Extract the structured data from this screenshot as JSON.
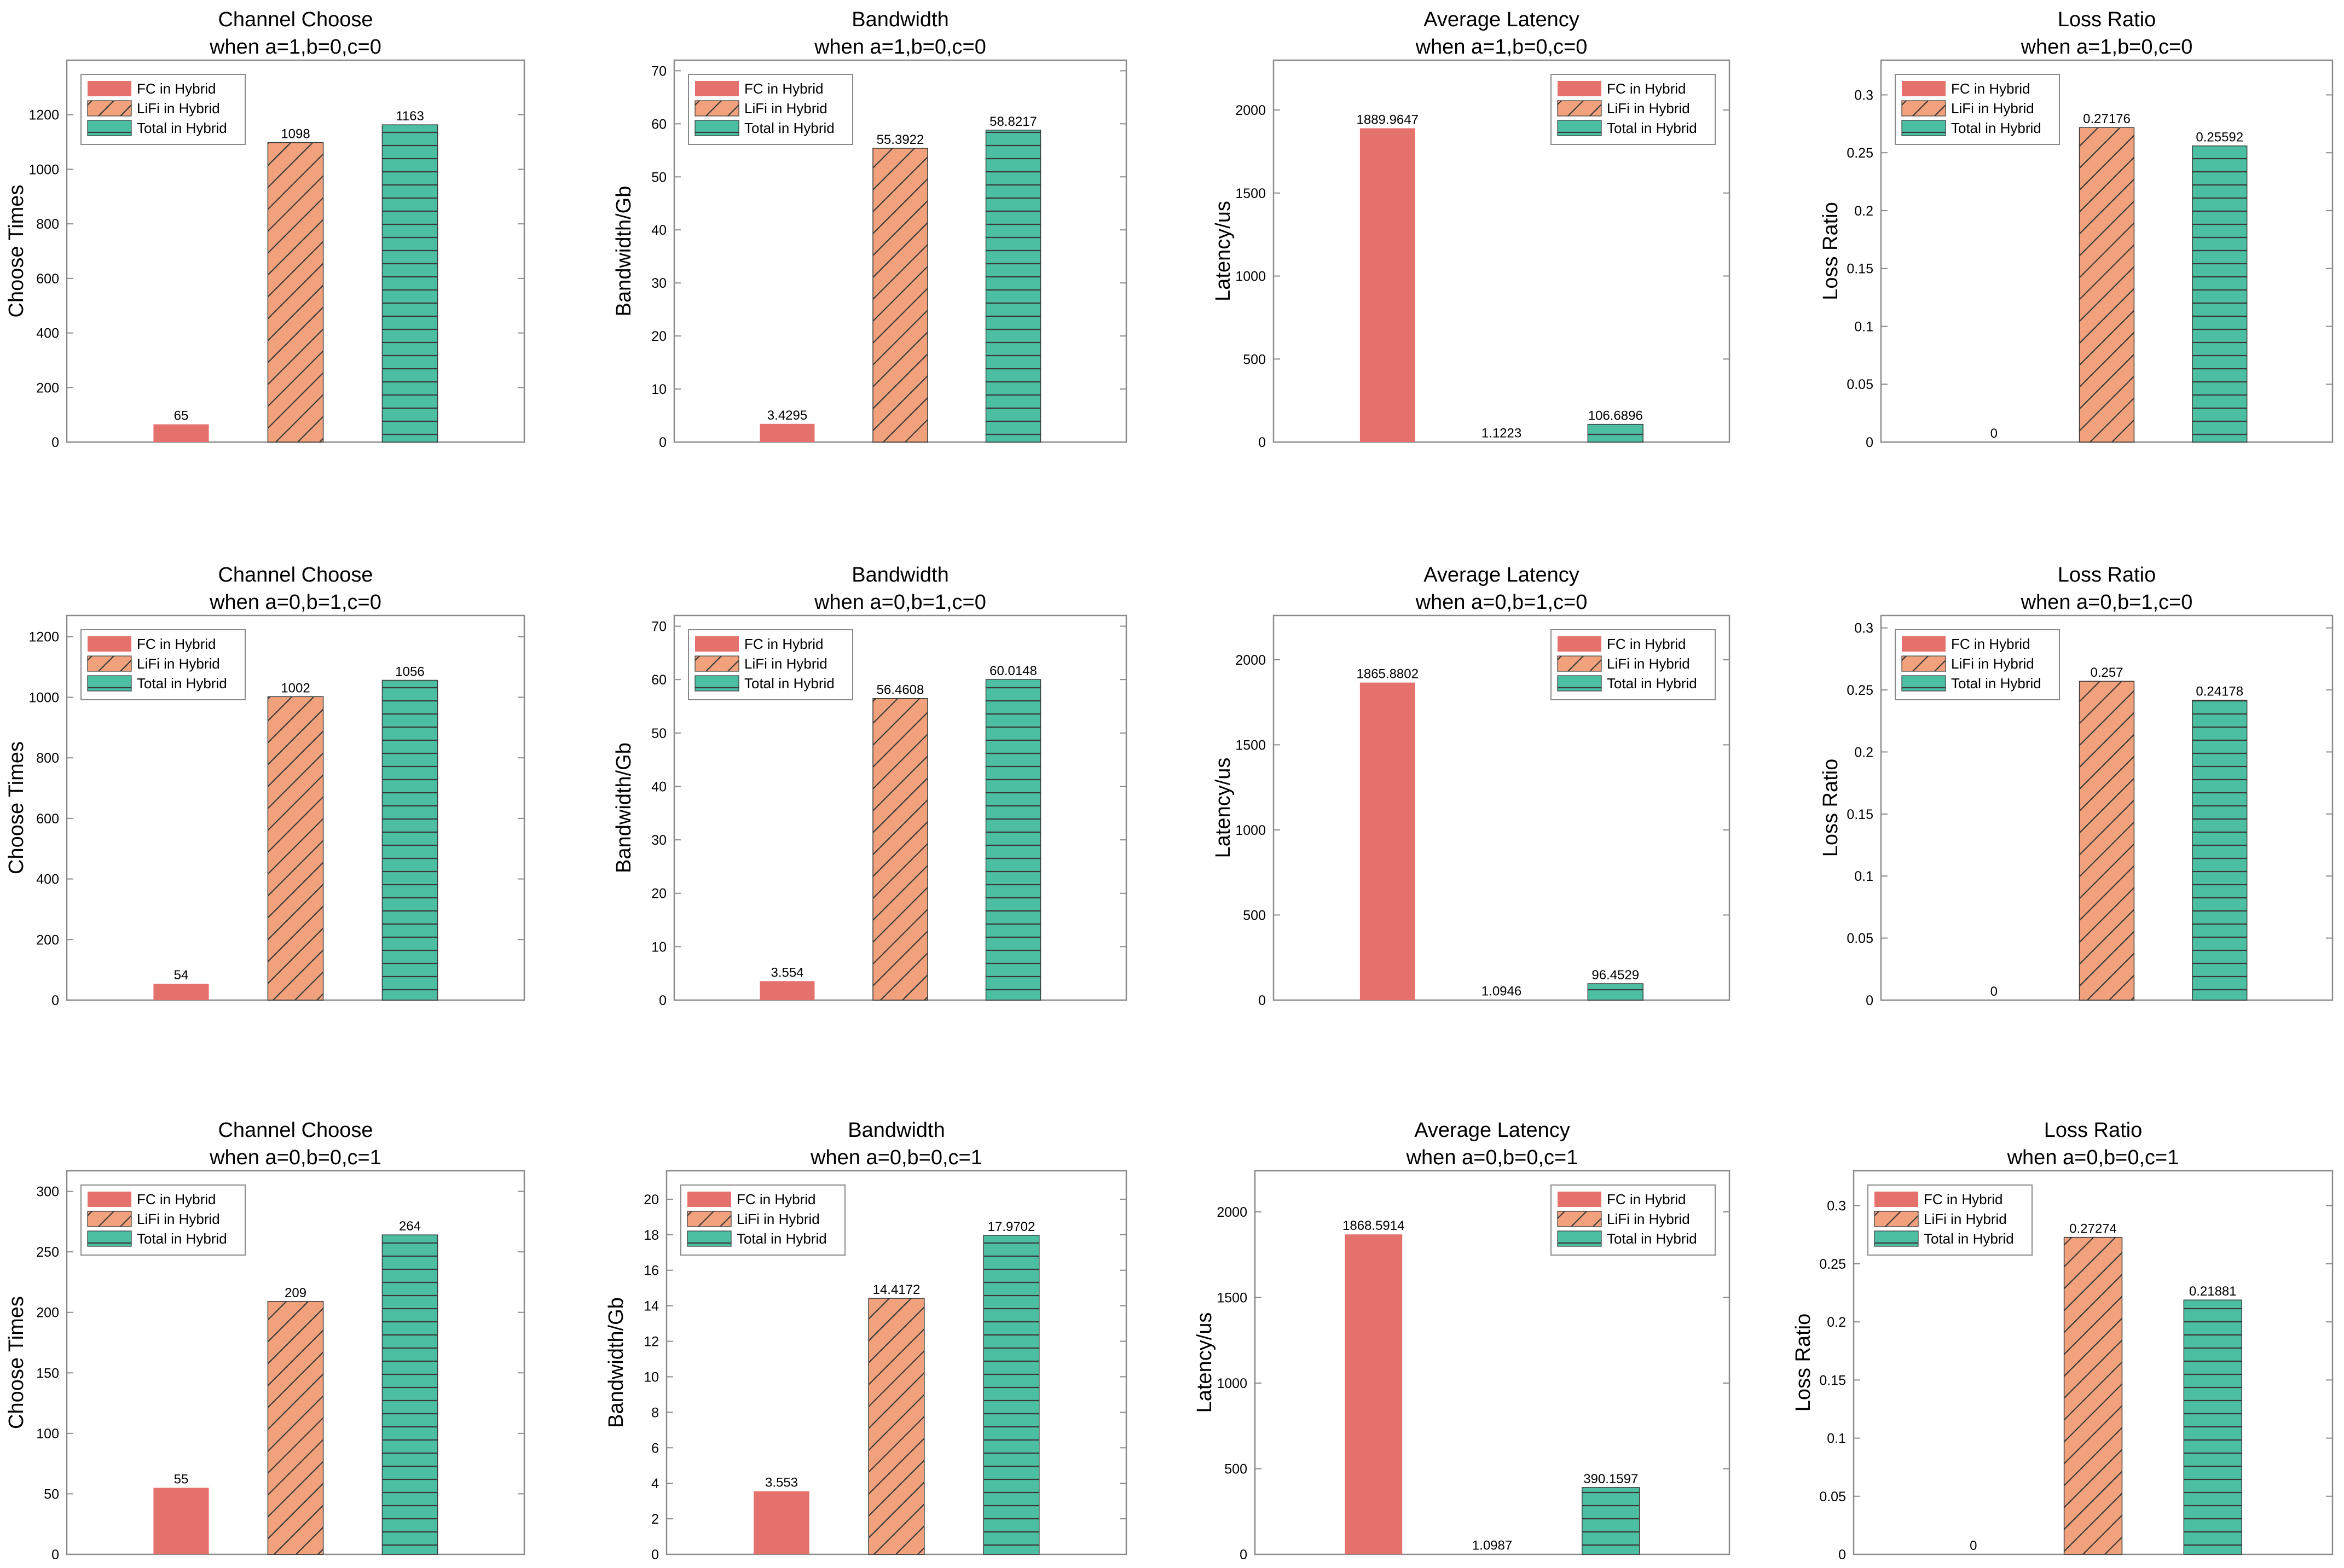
{
  "legend": [
    "FC in Hybrid",
    "LiFi in Hybrid",
    "Total in Hybrid"
  ],
  "colors": {
    "fc": "#e4716b",
    "lifi": "#f1a27c",
    "total": "#4cbfa3",
    "hatch": "#3a3a3a",
    "axis": "#8a8a8a"
  },
  "chart_data": [
    {
      "type": "bar",
      "title": "Channel Choose",
      "subtitle": "when a=1,b=0,c=0",
      "ylabel": "Choose Times",
      "ylim": [
        0,
        1400
      ],
      "yticks": [
        0,
        200,
        400,
        600,
        800,
        1000,
        1200
      ],
      "legend_loc": "top-left",
      "categories": [
        "FC in Hybrid",
        "LiFi in Hybrid",
        "Total in Hybrid"
      ],
      "values": [
        65,
        1098,
        1163
      ],
      "labels": [
        "65",
        "1098",
        "1163"
      ]
    },
    {
      "type": "bar",
      "title": "Bandwidth",
      "subtitle": "when a=1,b=0,c=0",
      "ylabel": "Bandwidth/Gb",
      "ylim": [
        0,
        72
      ],
      "yticks": [
        0,
        10,
        20,
        30,
        40,
        50,
        60,
        70
      ],
      "legend_loc": "top-left",
      "categories": [
        "FC in Hybrid",
        "LiFi in Hybrid",
        "Total in Hybrid"
      ],
      "values": [
        3.4295,
        55.3922,
        58.8217
      ],
      "labels": [
        "3.4295",
        "55.3922",
        "58.8217"
      ]
    },
    {
      "type": "bar",
      "title": "Average Latency",
      "subtitle": "when a=1,b=0,c=0",
      "ylabel": "Latency/us",
      "ylim": [
        0,
        2300
      ],
      "yticks": [
        0,
        500,
        1000,
        1500,
        2000
      ],
      "legend_loc": "top-right",
      "categories": [
        "FC in Hybrid",
        "LiFi in Hybrid",
        "Total in Hybrid"
      ],
      "values": [
        1889.9647,
        1.1223,
        106.6896
      ],
      "labels": [
        "1889.9647",
        "1.1223",
        "106.6896"
      ]
    },
    {
      "type": "bar",
      "title": "Loss Ratio",
      "subtitle": "when a=1,b=0,c=0",
      "ylabel": "Loss Ratio",
      "ylim": [
        0,
        0.33
      ],
      "yticks": [
        0,
        0.05,
        0.1,
        0.15,
        0.2,
        0.25,
        0.3
      ],
      "legend_loc": "top-left",
      "categories": [
        "FC in Hybrid",
        "LiFi in Hybrid",
        "Total in Hybrid"
      ],
      "values": [
        0,
        0.27176,
        0.25592
      ],
      "labels": [
        "0",
        "0.27176",
        "0.25592"
      ]
    },
    {
      "type": "bar",
      "title": "Channel Choose",
      "subtitle": "when a=0,b=1,c=0",
      "ylabel": "Choose Times",
      "ylim": [
        0,
        1270
      ],
      "yticks": [
        0,
        200,
        400,
        600,
        800,
        1000,
        1200
      ],
      "legend_loc": "top-left",
      "categories": [
        "FC in Hybrid",
        "LiFi in Hybrid",
        "Total in Hybrid"
      ],
      "values": [
        54,
        1002,
        1056
      ],
      "labels": [
        "54",
        "1002",
        "1056"
      ]
    },
    {
      "type": "bar",
      "title": "Bandwidth",
      "subtitle": "when a=0,b=1,c=0",
      "ylabel": "Bandwidth/Gb",
      "ylim": [
        0,
        72
      ],
      "yticks": [
        0,
        10,
        20,
        30,
        40,
        50,
        60,
        70
      ],
      "legend_loc": "top-left",
      "categories": [
        "FC in Hybrid",
        "LiFi in Hybrid",
        "Total in Hybrid"
      ],
      "values": [
        3.554,
        56.4608,
        60.0148
      ],
      "labels": [
        "3.554",
        "56.4608",
        "60.0148"
      ]
    },
    {
      "type": "bar",
      "title": "Average Latency",
      "subtitle": "when a=0,b=1,c=0",
      "ylabel": "Latency/us",
      "ylim": [
        0,
        2260
      ],
      "yticks": [
        0,
        500,
        1000,
        1500,
        2000
      ],
      "legend_loc": "top-right",
      "categories": [
        "FC in Hybrid",
        "LiFi in Hybrid",
        "Total in Hybrid"
      ],
      "values": [
        1865.8802,
        1.0946,
        96.4529
      ],
      "labels": [
        "1865.8802",
        "1.0946",
        "96.4529"
      ]
    },
    {
      "type": "bar",
      "title": "Loss Ratio",
      "subtitle": "when a=0,b=1,c=0",
      "ylabel": "Loss Ratio",
      "ylim": [
        0,
        0.31
      ],
      "yticks": [
        0,
        0.05,
        0.1,
        0.15,
        0.2,
        0.25,
        0.3
      ],
      "legend_loc": "top-left",
      "categories": [
        "FC in Hybrid",
        "LiFi in Hybrid",
        "Total in Hybrid"
      ],
      "values": [
        0,
        0.257,
        0.24178
      ],
      "labels": [
        "0",
        "0.257",
        "0.24178"
      ]
    },
    {
      "type": "bar",
      "title": "Channel Choose",
      "subtitle": "when a=0,b=0,c=1",
      "ylabel": "Choose Times",
      "ylim": [
        0,
        317
      ],
      "yticks": [
        0,
        50,
        100,
        150,
        200,
        250,
        300
      ],
      "legend_loc": "top-left",
      "categories": [
        "FC in Hybrid",
        "LiFi in Hybrid",
        "Total in Hybrid"
      ],
      "values": [
        55,
        209,
        264
      ],
      "labels": [
        "55",
        "209",
        "264"
      ]
    },
    {
      "type": "bar",
      "title": "Bandwidth",
      "subtitle": "when a=0,b=0,c=1",
      "ylabel": "Bandwidth/Gb",
      "ylim": [
        0,
        21.6
      ],
      "yticks": [
        0,
        2,
        4,
        6,
        8,
        10,
        12,
        14,
        16,
        18,
        20
      ],
      "legend_loc": "top-left",
      "categories": [
        "FC in Hybrid",
        "LiFi in Hybrid",
        "Total in Hybrid"
      ],
      "values": [
        3.553,
        14.4172,
        17.9702
      ],
      "labels": [
        "3.553",
        "14.4172",
        "17.9702"
      ]
    },
    {
      "type": "bar",
      "title": "Average Latency",
      "subtitle": "when a=0,b=0,c=1",
      "ylabel": "Latency/us",
      "ylim": [
        0,
        2240
      ],
      "yticks": [
        0,
        500,
        1000,
        1500,
        2000
      ],
      "legend_loc": "top-right",
      "categories": [
        "FC in Hybrid",
        "LiFi in Hybrid",
        "Total in Hybrid"
      ],
      "values": [
        1868.5914,
        1.0987,
        390.1597
      ],
      "labels": [
        "1868.5914",
        "1.0987",
        "390.1597"
      ]
    },
    {
      "type": "bar",
      "title": "Loss Ratio",
      "subtitle": "when a=0,b=0,c=1",
      "ylabel": "Loss Ratio",
      "ylim": [
        0,
        0.33
      ],
      "yticks": [
        0,
        0.05,
        0.1,
        0.15,
        0.2,
        0.25,
        0.3
      ],
      "legend_loc": "top-left",
      "categories": [
        "FC in Hybrid",
        "LiFi in Hybrid",
        "Total in Hybrid"
      ],
      "values": [
        0,
        0.27274,
        0.21881
      ],
      "labels": [
        "0",
        "0.27274",
        "0.21881"
      ]
    }
  ]
}
